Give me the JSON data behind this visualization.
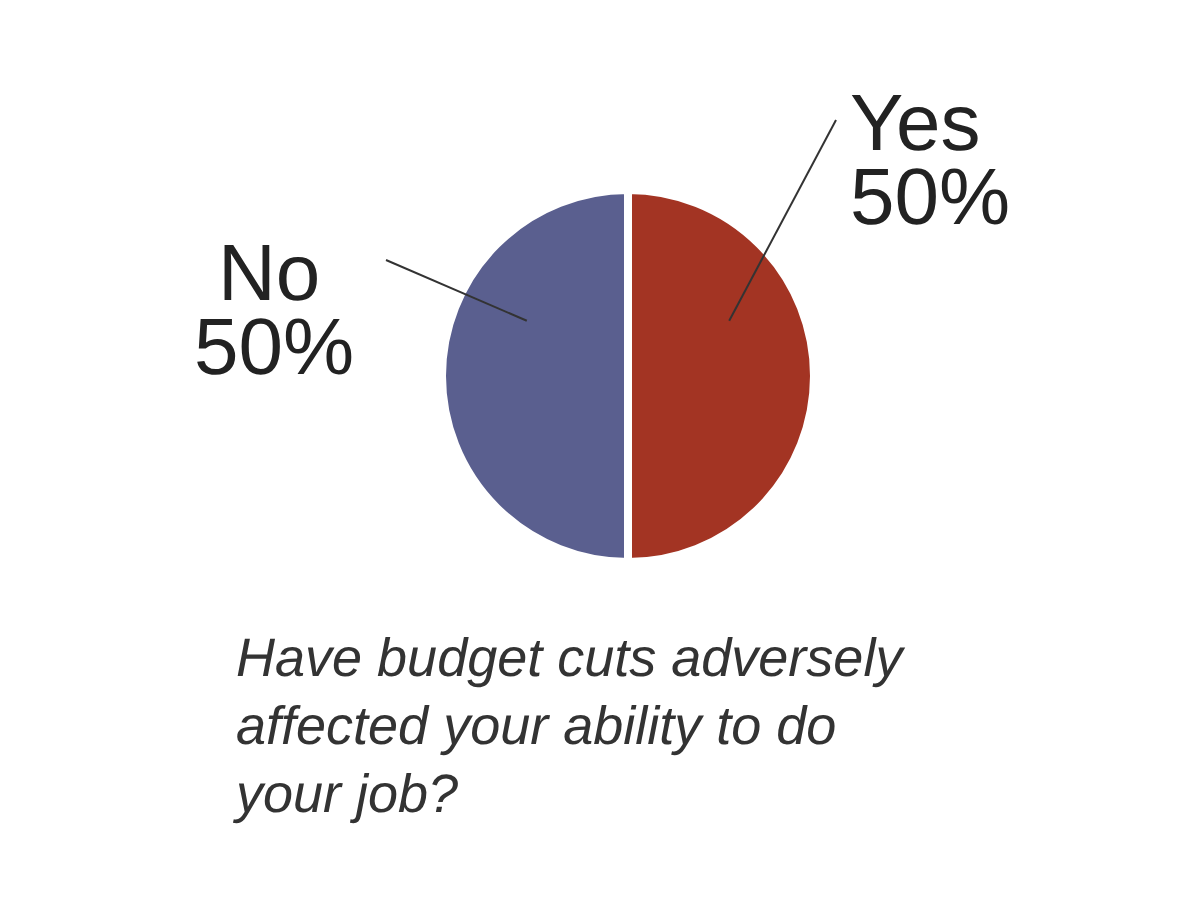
{
  "chart_data": {
    "type": "pie",
    "title": "Have budget cuts adversely affected your ability to do your job?",
    "categories": [
      "Yes",
      "No"
    ],
    "values": [
      50,
      50
    ],
    "colors": [
      "#a33423",
      "#5a5f8f"
    ],
    "value_labels": [
      "50%",
      "50%"
    ]
  }
}
